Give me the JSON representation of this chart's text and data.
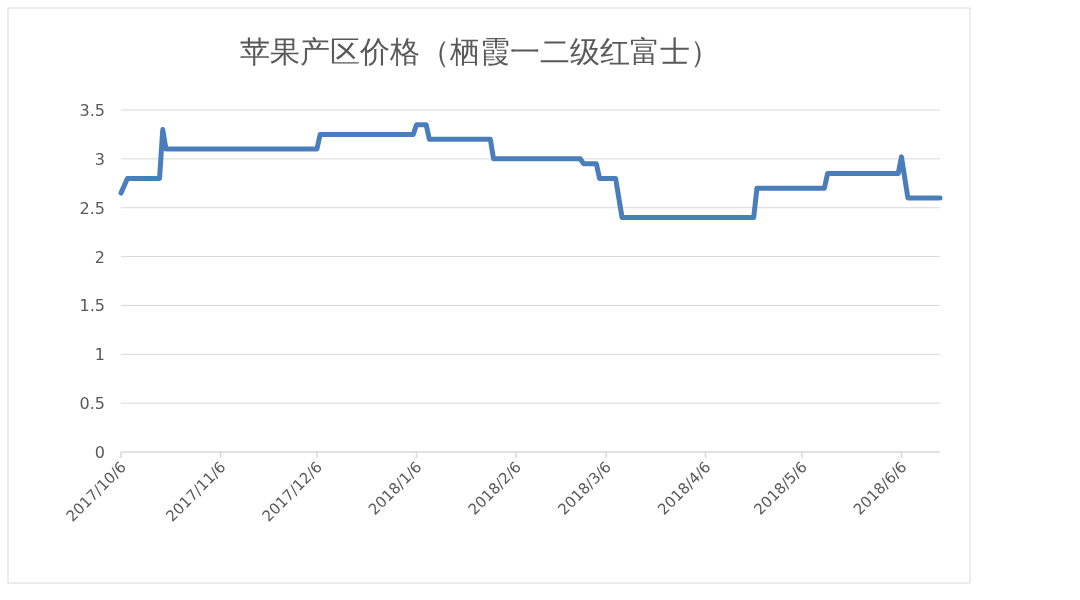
{
  "chart_data": {
    "type": "line",
    "title": "苹果产区价格（栖霞一二级红富士）",
    "x": [
      "2017-10-06",
      "2017-10-08",
      "2017-10-18",
      "2017-10-19",
      "2017-10-20",
      "2017-12-06",
      "2017-12-07",
      "2018-01-05",
      "2018-01-06",
      "2018-01-09",
      "2018-01-10",
      "2018-01-29",
      "2018-01-30",
      "2018-02-26",
      "2018-02-27",
      "2018-03-03",
      "2018-03-04",
      "2018-03-09",
      "2018-03-11",
      "2018-04-21",
      "2018-04-22",
      "2018-05-13",
      "2018-05-14",
      "2018-06-05",
      "2018-06-06",
      "2018-06-08",
      "2018-06-18"
    ],
    "series": [
      {
        "color": "#4a7ebb",
        "values": [
          2.65,
          2.8,
          2.8,
          3.3,
          3.1,
          3.1,
          3.25,
          3.25,
          3.35,
          3.35,
          3.2,
          3.2,
          3.0,
          3.0,
          2.95,
          2.95,
          2.8,
          2.8,
          2.4,
          2.4,
          2.7,
          2.7,
          2.85,
          2.85,
          3.02,
          2.6,
          2.6
        ]
      }
    ],
    "xlim": [
      "2017-10-06",
      "2018-06-18"
    ],
    "xticks": [
      {
        "value": "2017-10-06",
        "label": "2017/10/6"
      },
      {
        "value": "2017-11-06",
        "label": "2017/11/6"
      },
      {
        "value": "2017-12-06",
        "label": "2017/12/6"
      },
      {
        "value": "2018-01-06",
        "label": "2018/1/6"
      },
      {
        "value": "2018-02-06",
        "label": "2018/2/6"
      },
      {
        "value": "2018-03-06",
        "label": "2018/3/6"
      },
      {
        "value": "2018-04-06",
        "label": "2018/4/6"
      },
      {
        "value": "2018-05-06",
        "label": "2018/5/6"
      },
      {
        "value": "2018-06-06",
        "label": "2018/6/6"
      }
    ],
    "ylim": [
      0,
      3.5
    ],
    "yticks": [
      0,
      0.5,
      1,
      1.5,
      2,
      2.5,
      3,
      3.5
    ],
    "grid": "y",
    "marker": "none",
    "line_style": "solid"
  }
}
